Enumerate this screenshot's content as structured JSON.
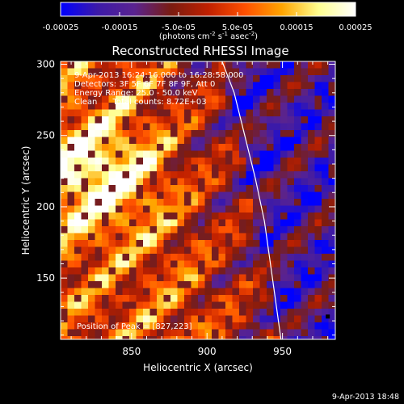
{
  "chart_data": {
    "type": "heatmap",
    "title": "Reconstructed RHESSI Image",
    "xlabel": "Heliocentric X (arcsec)",
    "ylabel": "Heliocentric Y (arcsec)",
    "xlim": [
      803,
      985
    ],
    "ylim": [
      107,
      302
    ],
    "x_ticks": [
      850,
      900,
      950
    ],
    "y_ticks": [
      150,
      200,
      250,
      300
    ],
    "colorbar": {
      "units_label": "(photons cm",
      "units_sup1": "-2",
      "units_mid": " s",
      "units_sup2": "-1",
      "units_mid2": " asec",
      "units_sup3": "-2",
      "units_end": ")",
      "min": -0.00025,
      "max": 0.00025,
      "tick_labels": [
        "-0.00025",
        "-0.00015",
        "-5.0e-05",
        "5.0e-05",
        "0.00015",
        "0.00025"
      ],
      "tick_values": [
        -0.00025,
        -0.00015,
        -5e-05,
        5e-05,
        0.00015,
        0.00025
      ],
      "colors": [
        "#0000ff",
        "#3c1aa8",
        "#5a2390",
        "#7a1c10",
        "#c02000",
        "#ff5000",
        "#ffa500",
        "#ffff90",
        "#ffffff"
      ]
    },
    "annotations": [
      "9-Apr-2013 16:24:16.000 to 16:28:58.000",
      "Detectors: 3F 5F 6F 7F 8F 9F, Att 0",
      "Energy Range: 25.0 - 50.0 keV",
      "Clean      Total counts: 8.72E+03"
    ],
    "peak_label": "Position of Peak = [827,223]",
    "peak_position": [
      827,
      223
    ],
    "limb_curve": [
      [
        910,
        302
      ],
      [
        918,
        280
      ],
      [
        925,
        250
      ],
      [
        932,
        220
      ],
      [
        938,
        190
      ],
      [
        942,
        160
      ],
      [
        946,
        130
      ],
      [
        949,
        107
      ]
    ],
    "footer_date": "9-Apr-2013 18:48"
  }
}
